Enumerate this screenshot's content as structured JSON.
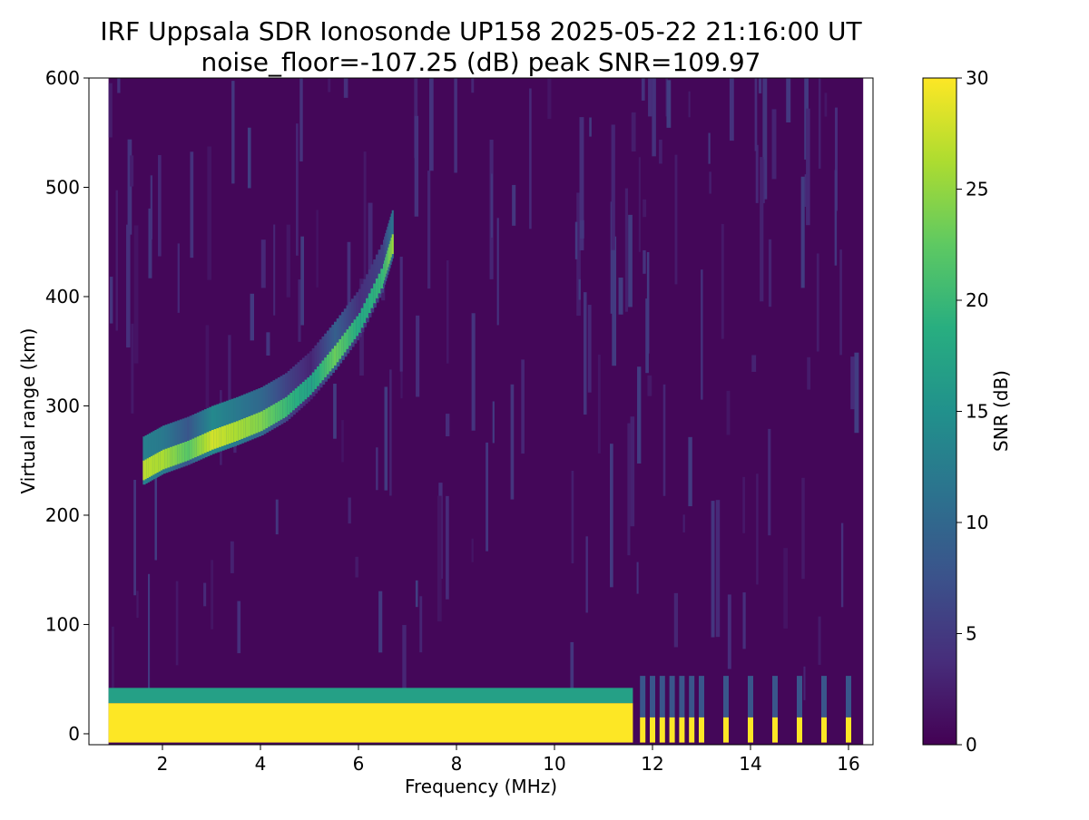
{
  "chart_data": {
    "type": "heatmap",
    "title": "IRF Uppsala SDR Ionosonde UP158 2025-05-22 21:16:00  UT",
    "subtitle": "noise_floor=-107.25 (dB) peak SNR=109.97",
    "xlabel": "Frequency (MHz)",
    "ylabel": "Virtual range (km)",
    "xlim": [
      0.5,
      16.5
    ],
    "ylim": [
      -10,
      600
    ],
    "x_ticks": [
      2,
      4,
      6,
      8,
      10,
      12,
      14,
      16
    ],
    "y_ticks": [
      0,
      100,
      200,
      300,
      400,
      500,
      600
    ],
    "colorbar": {
      "label": "SNR (dB)",
      "range": [
        0,
        30
      ],
      "ticks": [
        0,
        5,
        10,
        15,
        20,
        25,
        30
      ],
      "colormap": "viridis"
    },
    "data_extent_mhz": [
      0.9,
      16.3
    ],
    "traces": [
      {
        "kind": "ground-clutter",
        "freq_range": [
          0.9,
          11.6
        ],
        "range_km": [
          -8,
          28
        ],
        "snr_db": 30
      },
      {
        "kind": "F-region echo",
        "points": [
          {
            "freq": 1.6,
            "range_km": 240,
            "snr_db": 27
          },
          {
            "freq": 2.0,
            "range_km": 250,
            "snr_db": 26
          },
          {
            "freq": 2.5,
            "range_km": 258,
            "snr_db": 22
          },
          {
            "freq": 3.0,
            "range_km": 268,
            "snr_db": 28
          },
          {
            "freq": 3.5,
            "range_km": 276,
            "snr_db": 26
          },
          {
            "freq": 4.0,
            "range_km": 285,
            "snr_db": 24
          },
          {
            "freq": 4.5,
            "range_km": 298,
            "snr_db": 20
          },
          {
            "freq": 5.0,
            "range_km": 318,
            "snr_db": 17
          },
          {
            "freq": 5.5,
            "range_km": 345,
            "snr_db": 23
          },
          {
            "freq": 6.0,
            "range_km": 375,
            "snr_db": 18
          },
          {
            "freq": 6.5,
            "range_km": 420,
            "snr_db": 20
          },
          {
            "freq": 6.7,
            "range_km": 450,
            "snr_db": 26
          }
        ]
      },
      {
        "kind": "discrete-transmissions",
        "freqs_mhz": [
          11.8,
          12.0,
          12.2,
          12.4,
          12.6,
          12.8,
          13.0,
          13.5,
          14.0,
          14.5,
          15.0,
          15.5,
          16.0
        ],
        "range_km": [
          -8,
          15
        ],
        "snr_db": 30
      }
    ]
  }
}
